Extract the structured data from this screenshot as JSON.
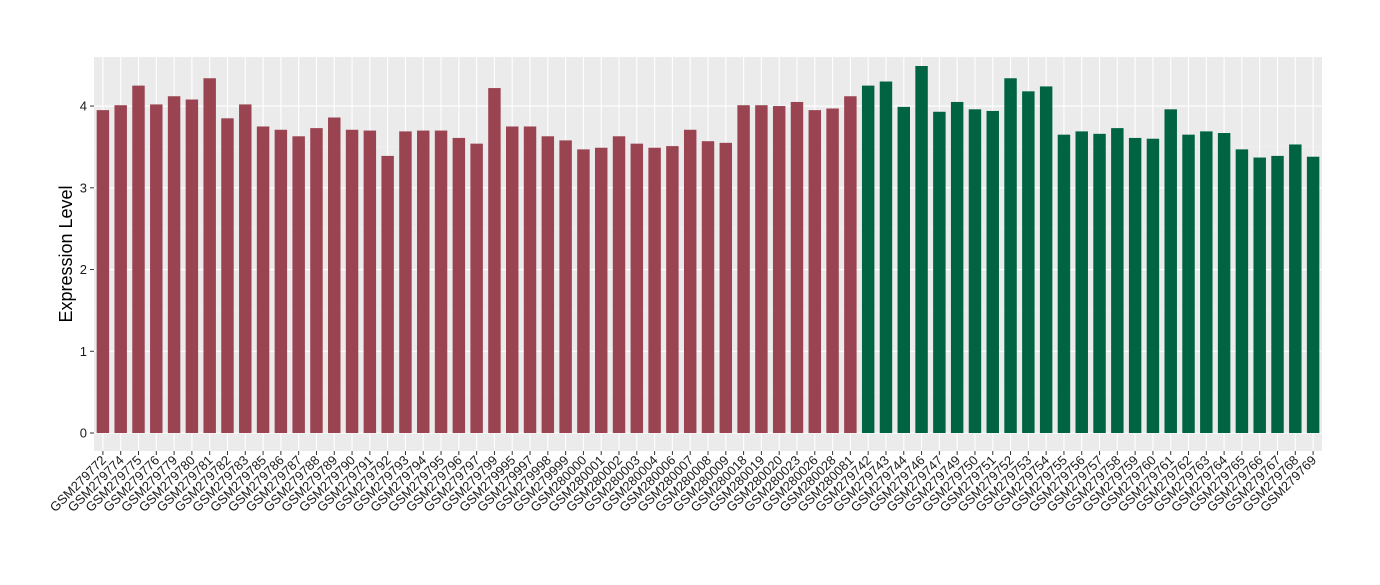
{
  "chart_data": {
    "type": "bar",
    "title": "",
    "xlabel": "",
    "ylabel": "Expression Level",
    "ylim": [
      -0.22,
      4.6
    ],
    "yticks": [
      0,
      1,
      2,
      3,
      4
    ],
    "grid": true,
    "legend": "none",
    "colors": {
      "group_1": "#9a4451",
      "group_2": "#006442",
      "panel_bg": "#ebebeb",
      "grid_major": "#ffffff",
      "grid_minor": "#f2f2f2"
    },
    "categories": [
      "GSM279772",
      "GSM279774",
      "GSM279775",
      "GSM279776",
      "GSM279779",
      "GSM279780",
      "GSM279781",
      "GSM279782",
      "GSM279783",
      "GSM279785",
      "GSM279786",
      "GSM279787",
      "GSM279788",
      "GSM279789",
      "GSM279790",
      "GSM279791",
      "GSM279792",
      "GSM279793",
      "GSM279794",
      "GSM279795",
      "GSM279796",
      "GSM279797",
      "GSM279799",
      "GSM279995",
      "GSM279997",
      "GSM279998",
      "GSM279999",
      "GSM280000",
      "GSM280001",
      "GSM280002",
      "GSM280003",
      "GSM280004",
      "GSM280006",
      "GSM280007",
      "GSM280008",
      "GSM280009",
      "GSM280018",
      "GSM280019",
      "GSM280020",
      "GSM280023",
      "GSM280026",
      "GSM280028",
      "GSM280081",
      "GSM279742",
      "GSM279743",
      "GSM279744",
      "GSM279746",
      "GSM279747",
      "GSM279749",
      "GSM279750",
      "GSM279751",
      "GSM279752",
      "GSM279753",
      "GSM279754",
      "GSM279755",
      "GSM279756",
      "GSM279757",
      "GSM279758",
      "GSM279759",
      "GSM279760",
      "GSM279761",
      "GSM279762",
      "GSM279763",
      "GSM279764",
      "GSM279765",
      "GSM279766",
      "GSM279767",
      "GSM279768",
      "GSM279769"
    ],
    "values": [
      3.95,
      4.01,
      4.25,
      4.02,
      4.12,
      4.08,
      4.34,
      3.85,
      4.02,
      3.75,
      3.71,
      3.63,
      3.73,
      3.86,
      3.71,
      3.7,
      3.39,
      3.69,
      3.7,
      3.7,
      3.61,
      3.54,
      4.22,
      3.75,
      3.75,
      3.63,
      3.58,
      3.47,
      3.49,
      3.63,
      3.54,
      3.49,
      3.51,
      3.71,
      3.57,
      3.55,
      4.01,
      4.01,
      4.0,
      4.05,
      3.95,
      3.97,
      4.12,
      4.25,
      4.3,
      3.99,
      4.49,
      3.93,
      4.05,
      3.96,
      3.94,
      4.34,
      4.18,
      4.24,
      3.65,
      3.69,
      3.66,
      3.73,
      3.61,
      3.6,
      3.96,
      3.65,
      3.69,
      3.67,
      3.47,
      3.37,
      3.39,
      3.53,
      3.38
    ],
    "group": [
      1,
      1,
      1,
      1,
      1,
      1,
      1,
      1,
      1,
      1,
      1,
      1,
      1,
      1,
      1,
      1,
      1,
      1,
      1,
      1,
      1,
      1,
      1,
      1,
      1,
      1,
      1,
      1,
      1,
      1,
      1,
      1,
      1,
      1,
      1,
      1,
      1,
      1,
      1,
      1,
      1,
      1,
      1,
      2,
      2,
      2,
      2,
      2,
      2,
      2,
      2,
      2,
      2,
      2,
      2,
      2,
      2,
      2,
      2,
      2,
      2,
      2,
      2,
      2,
      2,
      2,
      2,
      2,
      2
    ]
  }
}
